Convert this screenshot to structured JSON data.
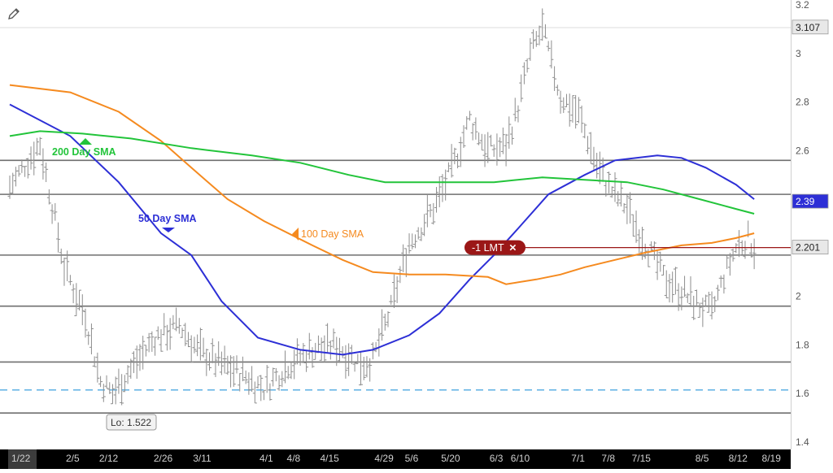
{
  "toolbar": {
    "edit_icon": "pencil-icon"
  },
  "chart_data": {
    "type": "bar",
    "subtype": "ohlc",
    "title": "",
    "xlabel": "",
    "ylabel": "",
    "ylim": [
      1.37,
      3.22
    ],
    "y_ticks": [
      "3.2",
      "3",
      "2.8",
      "2.6",
      "2.4",
      "2.2",
      "2",
      "1.8",
      "1.6",
      "1.4"
    ],
    "x_tick_labels": [
      "1/22",
      "2/5",
      "2/12",
      "2/26",
      "3/11",
      "4/1",
      "4/8",
      "4/15",
      "4/29",
      "5/6",
      "5/20",
      "6/3",
      "6/10",
      "7/1",
      "7/8",
      "7/15",
      "8/5",
      "8/12",
      "8/19"
    ],
    "grid": false,
    "legend": "inline-labels",
    "horizontal_levels": [
      2.56,
      2.42,
      2.17,
      1.96,
      1.73,
      1.52
    ],
    "dashed_level": 1.615,
    "price_points": [
      [
        0,
        2.45
      ],
      [
        10,
        2.63
      ],
      [
        18,
        2.12
      ],
      [
        25,
        1.92
      ],
      [
        30,
        1.65
      ],
      [
        34,
        1.6
      ],
      [
        40,
        1.7
      ],
      [
        48,
        1.83
      ],
      [
        56,
        1.88
      ],
      [
        62,
        1.78
      ],
      [
        70,
        1.72
      ],
      [
        78,
        1.67
      ],
      [
        84,
        1.62
      ],
      [
        92,
        1.72
      ],
      [
        100,
        1.78
      ],
      [
        108,
        1.8
      ],
      [
        116,
        1.72
      ],
      [
        120,
        1.74
      ],
      [
        126,
        1.95
      ],
      [
        132,
        2.22
      ],
      [
        140,
        2.36
      ],
      [
        146,
        2.52
      ],
      [
        152,
        2.73
      ],
      [
        158,
        2.6
      ],
      [
        164,
        2.62
      ],
      [
        168,
        2.78
      ],
      [
        172,
        3.0
      ],
      [
        176,
        3.1
      ],
      [
        182,
        2.82
      ],
      [
        188,
        2.75
      ],
      [
        194,
        2.54
      ],
      [
        198,
        2.45
      ],
      [
        204,
        2.36
      ],
      [
        210,
        2.22
      ],
      [
        216,
        2.08
      ],
      [
        222,
        2.02
      ],
      [
        228,
        1.96
      ],
      [
        232,
        1.93
      ],
      [
        236,
        2.08
      ],
      [
        240,
        2.2
      ],
      [
        244,
        2.24
      ],
      [
        246,
        2.2
      ]
    ],
    "series": [
      {
        "name": "50 Day SMA",
        "color": "#2d2fd6",
        "points": [
          [
            0,
            2.79
          ],
          [
            20,
            2.66
          ],
          [
            36,
            2.47
          ],
          [
            50,
            2.26
          ],
          [
            60,
            2.17
          ],
          [
            70,
            1.98
          ],
          [
            82,
            1.83
          ],
          [
            96,
            1.78
          ],
          [
            110,
            1.76
          ],
          [
            120,
            1.78
          ],
          [
            132,
            1.84
          ],
          [
            142,
            1.93
          ],
          [
            152,
            2.07
          ],
          [
            160,
            2.17
          ],
          [
            168,
            2.28
          ],
          [
            178,
            2.42
          ],
          [
            190,
            2.5
          ],
          [
            200,
            2.56
          ],
          [
            214,
            2.58
          ],
          [
            222,
            2.57
          ],
          [
            230,
            2.53
          ],
          [
            240,
            2.46
          ],
          [
            246,
            2.4
          ]
        ]
      },
      {
        "name": "100 Day SMA",
        "color": "#f58a1f",
        "points": [
          [
            0,
            2.87
          ],
          [
            20,
            2.84
          ],
          [
            36,
            2.76
          ],
          [
            50,
            2.64
          ],
          [
            60,
            2.53
          ],
          [
            72,
            2.4
          ],
          [
            84,
            2.31
          ],
          [
            100,
            2.21
          ],
          [
            110,
            2.15
          ],
          [
            120,
            2.1
          ],
          [
            132,
            2.09
          ],
          [
            144,
            2.09
          ],
          [
            158,
            2.08
          ],
          [
            164,
            2.05
          ],
          [
            174,
            2.07
          ],
          [
            182,
            2.09
          ],
          [
            190,
            2.12
          ],
          [
            200,
            2.15
          ],
          [
            210,
            2.18
          ],
          [
            222,
            2.21
          ],
          [
            232,
            2.22
          ],
          [
            240,
            2.24
          ],
          [
            246,
            2.26
          ]
        ]
      },
      {
        "name": "200 Day SMA",
        "color": "#22c43a",
        "points": [
          [
            0,
            2.66
          ],
          [
            10,
            2.68
          ],
          [
            24,
            2.67
          ],
          [
            40,
            2.65
          ],
          [
            60,
            2.61
          ],
          [
            80,
            2.58
          ],
          [
            96,
            2.55
          ],
          [
            112,
            2.5
          ],
          [
            124,
            2.47
          ],
          [
            140,
            2.47
          ],
          [
            160,
            2.47
          ],
          [
            176,
            2.49
          ],
          [
            190,
            2.48
          ],
          [
            204,
            2.47
          ],
          [
            216,
            2.44
          ],
          [
            228,
            2.4
          ],
          [
            240,
            2.36
          ],
          [
            246,
            2.34
          ]
        ]
      }
    ],
    "annotations": {
      "sma200_label": "200 Day SMA",
      "sma50_label": "50 Day SMA",
      "sma100_label": "100  Day SMA",
      "low_label": "Lo: 1.522",
      "order_label": "-1 LMT",
      "order_close": "×",
      "order_price": 2.201,
      "order_color": "#9b1717"
    },
    "price_tags": [
      {
        "text": "3.107",
        "value": 3.107,
        "color": "#e8e8e8",
        "text_color": "#222222"
      },
      {
        "text": "2.39",
        "value": 2.39,
        "color": "#2d2fd6",
        "text_color": "#ffffff"
      },
      {
        "text": "2.201",
        "value": 2.201,
        "color": "#e8e8e8",
        "text_color": "#222222"
      }
    ]
  }
}
